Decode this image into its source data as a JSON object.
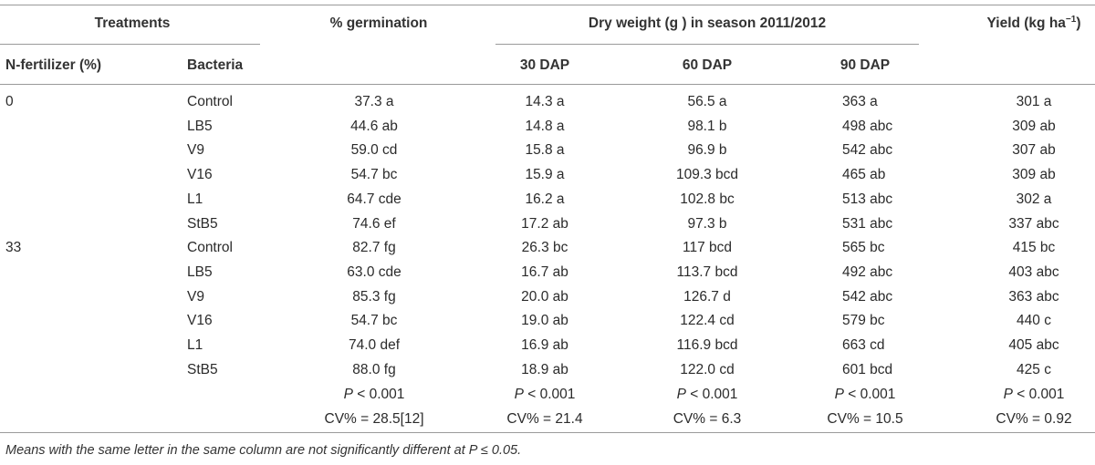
{
  "header": {
    "treatments": "Treatments",
    "germination": "% germination",
    "dry_weight": "Dry weight (g ) in season 2011/2012",
    "yield_main": "Yield (kg ha",
    "yield_sup": "−1",
    "yield_close": ")",
    "n_fertilizer": "N-fertilizer (%)",
    "bacteria": "Bacteria",
    "dap30": "30 DAP",
    "dap60": "60 DAP",
    "dap90": "90 DAP"
  },
  "rows": [
    {
      "n": "0",
      "bacteria": "Control",
      "germination": "37.3 a",
      "dap30": "14.3 a",
      "dap60": "56.5 a",
      "dap90": "363 a",
      "yield": "301 a"
    },
    {
      "n": "",
      "bacteria": "LB5",
      "germination": "44.6 ab",
      "dap30": "14.8 a",
      "dap60": "98.1 b",
      "dap90": "498 abc",
      "yield": "309 ab"
    },
    {
      "n": "",
      "bacteria": "V9",
      "germination": "59.0 cd",
      "dap30": "15.8 a",
      "dap60": "96.9 b",
      "dap90": "542 abc",
      "yield": "307 ab"
    },
    {
      "n": "",
      "bacteria": "V16",
      "germination": "54.7 bc",
      "dap30": "15.9 a",
      "dap60": "109.3 bcd",
      "dap90": "465 ab",
      "yield": "309 ab"
    },
    {
      "n": "",
      "bacteria": "L1",
      "germination": "64.7 cde",
      "dap30": "16.2 a",
      "dap60": "102.8 bc",
      "dap90": "513 abc",
      "yield": "302 a"
    },
    {
      "n": "",
      "bacteria": "StB5",
      "germination": "74.6 ef",
      "dap30": "17.2 ab",
      "dap60": "97.3 b",
      "dap90": "531 abc",
      "yield": "337 abc"
    },
    {
      "n": "33",
      "bacteria": "Control",
      "germination": "82.7 fg",
      "dap30": "26.3 bc",
      "dap60": "117 bcd",
      "dap90": "565 bc",
      "yield": "415 bc"
    },
    {
      "n": "",
      "bacteria": "LB5",
      "germination": "63.0 cde",
      "dap30": "16.7 ab",
      "dap60": "113.7 bcd",
      "dap90": "492 abc",
      "yield": "403 abc"
    },
    {
      "n": "",
      "bacteria": "V9",
      "germination": "85.3 fg",
      "dap30": "20.0 ab",
      "dap60": "126.7 d",
      "dap90": "542 abc",
      "yield": "363 abc"
    },
    {
      "n": "",
      "bacteria": "V16",
      "germination": "54.7 bc",
      "dap30": "19.0 ab",
      "dap60": "122.4 cd",
      "dap90": "579 bc",
      "yield": "440 c"
    },
    {
      "n": "",
      "bacteria": "L1",
      "germination": "74.0 def",
      "dap30": "16.9 ab",
      "dap60": "116.9 bcd",
      "dap90": "663 cd",
      "yield": "405 abc"
    },
    {
      "n": "",
      "bacteria": "StB5",
      "germination": "88.0 fg",
      "dap30": "18.9 ab",
      "dap60": "122.0 cd",
      "dap90": "601 bcd",
      "yield": "425 c"
    }
  ],
  "stats": {
    "p_label": "P",
    "p_value": " < 0.001",
    "cv": {
      "germination": "CV% = 28.5[12]",
      "dap30": "CV% = 21.4",
      "dap60": "CV% = 6.3",
      "dap90": "CV% = 10.5",
      "yield": "CV% = 0.92"
    }
  },
  "footnote": "Means with the same letter in the same column are not significantly different at P ≤ 0.05."
}
